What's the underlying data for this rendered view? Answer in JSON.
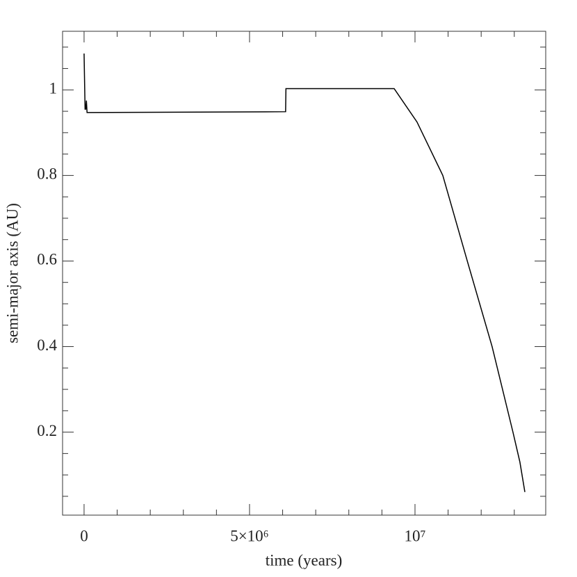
{
  "chart_data": {
    "type": "line",
    "xlabel": "time (years)",
    "ylabel": "semi-major axis (AU)",
    "x": [
      0,
      30000,
      50000,
      70000,
      90000,
      6090000,
      6100000,
      9370000,
      10060000,
      10840000,
      11580000,
      12330000,
      12960000,
      13170000,
      13320000
    ],
    "values": [
      1.085,
      0.955,
      0.955,
      0.975,
      0.947,
      0.949,
      1.003,
      1.003,
      0.925,
      0.8,
      0.6,
      0.4,
      0.2,
      0.13,
      0.06
    ],
    "color": "#000000",
    "xlim": [
      -650000,
      13950000
    ],
    "ylim": [
      0.006,
      1.137
    ],
    "xticks": [
      0,
      {
        "value": 5000000,
        "label": "5×10⁶"
      },
      {
        "value": 10000000,
        "label": "10⁷"
      }
    ],
    "xminorticks": [
      1000000,
      2000000,
      3000000,
      4000000,
      6000000,
      7000000,
      8000000,
      9000000,
      11000000,
      12000000,
      13000000
    ],
    "yticks": [
      0.2,
      0.4,
      0.6,
      0.8,
      1
    ],
    "yminorticks": [
      0.05,
      0.1,
      0.15,
      0.25,
      0.3,
      0.35,
      0.45,
      0.5,
      0.55,
      0.65,
      0.7,
      0.75,
      0.85,
      0.9,
      0.95,
      1.05,
      1.1
    ]
  }
}
